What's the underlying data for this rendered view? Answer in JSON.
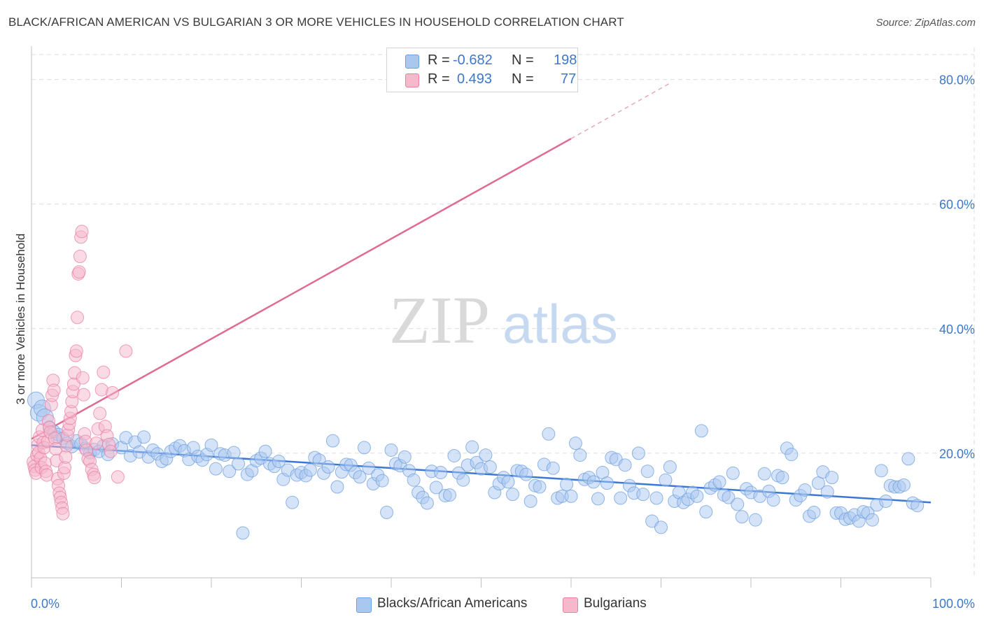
{
  "title": "BLACK/AFRICAN AMERICAN VS BULGARIAN 3 OR MORE VEHICLES IN HOUSEHOLD CORRELATION CHART",
  "source": "Source: ZipAtlas.com",
  "watermark": {
    "zip": "ZIP",
    "atlas": "atlas"
  },
  "legend_top": {
    "rows": [
      {
        "r_label": "R =",
        "r_value": "-0.682",
        "n_label": "N =",
        "n_value": "198",
        "color": "#a9c8f0",
        "border": "#6d9fe0"
      },
      {
        "r_label": "R =",
        "r_value": "0.493",
        "n_label": "N =",
        "n_value": "77",
        "color": "#f6b8cb",
        "border": "#e97fa1"
      }
    ]
  },
  "legend_bottom": [
    {
      "label": "Blacks/African Americans",
      "color": "#a9c8f0",
      "border": "#6d9fe0"
    },
    {
      "label": "Bulgarians",
      "color": "#f6b8cb",
      "border": "#e97fa1"
    }
  ],
  "chart_data": {
    "type": "scatter",
    "title": "BLACK/AFRICAN AMERICAN VS BULGARIAN 3 OR MORE VEHICLES IN HOUSEHOLD CORRELATION CHART",
    "xlabel": "",
    "ylabel": "3 or more Vehicles in Household",
    "xlim": [
      0,
      100
    ],
    "ylim": [
      0,
      84
    ],
    "y_ticks": [
      20,
      40,
      60,
      80
    ],
    "y_tick_labels": [
      "20.0%",
      "40.0%",
      "60.0%",
      "80.0%"
    ],
    "x_tick_labels": [
      "0.0%",
      "100.0%"
    ],
    "grid": true,
    "series": [
      {
        "name": "Blacks/African Americans",
        "color": "#6d9fe0",
        "fill": "#a9c8f0",
        "trend": {
          "x0": 0,
          "y0": 21.3,
          "x1": 100,
          "y1": 12.1,
          "style": "solid"
        },
        "points": [
          [
            0.5,
            28.5
          ],
          [
            0.8,
            26.5
          ],
          [
            1.2,
            27.2
          ],
          [
            1.5,
            25.8
          ],
          [
            2.0,
            24.2
          ],
          [
            2.5,
            23.5
          ],
          [
            2.8,
            22.6
          ],
          [
            3.0,
            23.0
          ],
          [
            3.5,
            22.4
          ],
          [
            4.0,
            21.6
          ],
          [
            4.5,
            21.1
          ],
          [
            5.0,
            22.0
          ],
          [
            5.5,
            21.5
          ],
          [
            6.0,
            20.8
          ],
          [
            6.5,
            20.1
          ],
          [
            7.0,
            20.6
          ],
          [
            7.5,
            20.3
          ],
          [
            8.0,
            21.2
          ],
          [
            8.5,
            19.8
          ],
          [
            9.0,
            21.5
          ],
          [
            10.0,
            20.9
          ],
          [
            10.5,
            22.5
          ],
          [
            11.0,
            19.6
          ],
          [
            11.5,
            21.8
          ],
          [
            12.0,
            20.2
          ],
          [
            12.5,
            22.6
          ],
          [
            13.0,
            19.4
          ],
          [
            13.5,
            20.5
          ],
          [
            14.0,
            19.9
          ],
          [
            14.5,
            18.7
          ],
          [
            15.0,
            19.1
          ],
          [
            15.5,
            20.3
          ],
          [
            16.0,
            20.8
          ],
          [
            16.5,
            21.2
          ],
          [
            17.0,
            20.4
          ],
          [
            17.5,
            19.0
          ],
          [
            18.0,
            20.9
          ],
          [
            18.5,
            19.5
          ],
          [
            19.0,
            18.9
          ],
          [
            19.5,
            19.8
          ],
          [
            20.0,
            21.3
          ],
          [
            20.5,
            17.5
          ],
          [
            21.0,
            19.9
          ],
          [
            21.5,
            19.7
          ],
          [
            22.0,
            17.1
          ],
          [
            22.5,
            20.1
          ],
          [
            23.0,
            18.3
          ],
          [
            23.5,
            7.2
          ],
          [
            24.0,
            16.6
          ],
          [
            24.5,
            17.2
          ],
          [
            25.0,
            18.8
          ],
          [
            25.5,
            19.2
          ],
          [
            26.0,
            20.3
          ],
          [
            26.5,
            18.3
          ],
          [
            27.0,
            17.9
          ],
          [
            27.5,
            18.7
          ],
          [
            28.0,
            15.8
          ],
          [
            28.5,
            17.3
          ],
          [
            29.0,
            12.1
          ],
          [
            29.5,
            16.5
          ],
          [
            30.0,
            16.9
          ],
          [
            30.5,
            16.4
          ],
          [
            31.0,
            17.3
          ],
          [
            31.5,
            19.3
          ],
          [
            32.0,
            18.9
          ],
          [
            32.5,
            16.8
          ],
          [
            33.0,
            17.8
          ],
          [
            33.5,
            22.0
          ],
          [
            34.0,
            14.6
          ],
          [
            34.5,
            17.0
          ],
          [
            35.0,
            18.2
          ],
          [
            35.5,
            18.1
          ],
          [
            36.0,
            16.9
          ],
          [
            36.5,
            16.2
          ],
          [
            37.0,
            20.9
          ],
          [
            37.5,
            17.6
          ],
          [
            38.0,
            15.1
          ],
          [
            38.5,
            16.5
          ],
          [
            39.0,
            15.6
          ],
          [
            39.5,
            10.5
          ],
          [
            40.0,
            20.5
          ],
          [
            40.5,
            18.3
          ],
          [
            41.0,
            18.0
          ],
          [
            41.5,
            19.4
          ],
          [
            42.0,
            17.2
          ],
          [
            42.5,
            15.7
          ],
          [
            43.0,
            13.7
          ],
          [
            43.5,
            12.9
          ],
          [
            44.0,
            12.0
          ],
          [
            44.5,
            17.1
          ],
          [
            45.0,
            14.5
          ],
          [
            45.5,
            16.9
          ],
          [
            46.0,
            13.2
          ],
          [
            46.5,
            13.3
          ],
          [
            47.0,
            19.6
          ],
          [
            47.5,
            16.8
          ],
          [
            48.0,
            15.7
          ],
          [
            48.5,
            18.1
          ],
          [
            49.0,
            21.0
          ],
          [
            49.5,
            18.5
          ],
          [
            50.0,
            17.5
          ],
          [
            50.5,
            19.7
          ],
          [
            51.0,
            17.8
          ],
          [
            51.5,
            13.7
          ],
          [
            52.0,
            15.1
          ],
          [
            52.5,
            16.1
          ],
          [
            53.0,
            15.4
          ],
          [
            53.5,
            13.4
          ],
          [
            54.0,
            17.2
          ],
          [
            54.5,
            17.1
          ],
          [
            55.0,
            16.6
          ],
          [
            55.5,
            12.3
          ],
          [
            56.0,
            14.8
          ],
          [
            56.5,
            14.6
          ],
          [
            57.0,
            18.2
          ],
          [
            57.5,
            23.1
          ],
          [
            58.0,
            17.6
          ],
          [
            58.5,
            12.8
          ],
          [
            59.0,
            13.1
          ],
          [
            59.5,
            15.0
          ],
          [
            60.0,
            13.1
          ],
          [
            60.5,
            21.6
          ],
          [
            61.0,
            19.7
          ],
          [
            61.5,
            15.8
          ],
          [
            62.0,
            16.1
          ],
          [
            62.5,
            15.4
          ],
          [
            63.0,
            12.7
          ],
          [
            63.5,
            16.9
          ],
          [
            64.0,
            15.2
          ],
          [
            64.5,
            19.3
          ],
          [
            65.0,
            19.0
          ],
          [
            65.5,
            12.8
          ],
          [
            66.0,
            18.1
          ],
          [
            66.5,
            14.8
          ],
          [
            67.0,
            13.6
          ],
          [
            67.5,
            20.0
          ],
          [
            68.0,
            13.4
          ],
          [
            68.5,
            17.1
          ],
          [
            69.0,
            9.1
          ],
          [
            69.5,
            12.8
          ],
          [
            70.0,
            8.1
          ],
          [
            70.5,
            15.7
          ],
          [
            71.0,
            17.8
          ],
          [
            71.5,
            12.3
          ],
          [
            72.0,
            13.7
          ],
          [
            72.5,
            12.1
          ],
          [
            73.0,
            12.6
          ],
          [
            73.5,
            13.7
          ],
          [
            74.0,
            13.1
          ],
          [
            74.5,
            23.6
          ],
          [
            75.0,
            10.6
          ],
          [
            75.5,
            14.4
          ],
          [
            76.0,
            14.9
          ],
          [
            76.5,
            15.4
          ],
          [
            77.0,
            13.3
          ],
          [
            77.5,
            12.9
          ],
          [
            78.0,
            16.8
          ],
          [
            78.5,
            11.8
          ],
          [
            79.0,
            9.8
          ],
          [
            79.5,
            14.3
          ],
          [
            80.0,
            13.7
          ],
          [
            80.5,
            9.3
          ],
          [
            81.0,
            13.1
          ],
          [
            81.5,
            16.7
          ],
          [
            82.0,
            13.9
          ],
          [
            82.5,
            12.5
          ],
          [
            83.0,
            16.4
          ],
          [
            83.5,
            16.1
          ],
          [
            84.0,
            20.8
          ],
          [
            84.5,
            19.8
          ],
          [
            85.0,
            12.5
          ],
          [
            85.5,
            13.2
          ],
          [
            86.0,
            14.1
          ],
          [
            86.5,
            9.9
          ],
          [
            87.0,
            10.5
          ],
          [
            87.5,
            15.2
          ],
          [
            88.0,
            17.0
          ],
          [
            88.5,
            13.8
          ],
          [
            89.0,
            16.1
          ],
          [
            89.5,
            10.4
          ],
          [
            90.0,
            10.4
          ],
          [
            90.5,
            9.4
          ],
          [
            91.0,
            9.6
          ],
          [
            91.5,
            10.1
          ],
          [
            92.0,
            9.1
          ],
          [
            92.5,
            10.6
          ],
          [
            93.0,
            10.4
          ],
          [
            93.5,
            9.3
          ],
          [
            94.0,
            11.7
          ],
          [
            94.5,
            17.2
          ],
          [
            95.0,
            12.3
          ],
          [
            95.5,
            14.8
          ],
          [
            96.0,
            14.6
          ],
          [
            96.5,
            14.6
          ],
          [
            97.0,
            14.9
          ],
          [
            97.5,
            19.1
          ],
          [
            98.0,
            12.0
          ],
          [
            98.5,
            11.6
          ]
        ]
      },
      {
        "name": "Bulgarians",
        "color": "#e97fa1",
        "fill": "#f6b8cb",
        "trend": {
          "x0": 0,
          "y0": 22.3,
          "x1": 60,
          "y1": 70.5,
          "x2": 71,
          "y2": 79.4,
          "style": "solid-then-dashed"
        },
        "points": [
          [
            0.2,
            18.6
          ],
          [
            0.3,
            17.9
          ],
          [
            0.4,
            17.3
          ],
          [
            0.5,
            16.8
          ],
          [
            0.6,
            19.7
          ],
          [
            0.7,
            21.3
          ],
          [
            0.8,
            20.1
          ],
          [
            0.9,
            22.6
          ],
          [
            1.0,
            19.2
          ],
          [
            1.1,
            17.7
          ],
          [
            1.2,
            23.7
          ],
          [
            1.3,
            21.7
          ],
          [
            1.4,
            20.9
          ],
          [
            1.5,
            18.4
          ],
          [
            1.6,
            17.1
          ],
          [
            1.7,
            16.5
          ],
          [
            1.8,
            21.9
          ],
          [
            1.9,
            25.2
          ],
          [
            2.0,
            24.1
          ],
          [
            2.1,
            23.4
          ],
          [
            2.2,
            27.8
          ],
          [
            2.3,
            29.3
          ],
          [
            2.4,
            31.7
          ],
          [
            2.5,
            30.1
          ],
          [
            2.6,
            22.4
          ],
          [
            2.7,
            20.7
          ],
          [
            2.8,
            18.8
          ],
          [
            2.9,
            15.9
          ],
          [
            3.0,
            14.8
          ],
          [
            3.1,
            13.6
          ],
          [
            3.2,
            12.9
          ],
          [
            3.3,
            12.1
          ],
          [
            3.4,
            11.2
          ],
          [
            3.5,
            10.3
          ],
          [
            3.6,
            16.8
          ],
          [
            3.7,
            17.7
          ],
          [
            3.8,
            19.4
          ],
          [
            3.9,
            21.2
          ],
          [
            4.0,
            22.9
          ],
          [
            4.1,
            23.8
          ],
          [
            4.2,
            24.7
          ],
          [
            4.3,
            25.6
          ],
          [
            4.4,
            26.7
          ],
          [
            4.5,
            28.3
          ],
          [
            4.6,
            29.9
          ],
          [
            4.7,
            31.1
          ],
          [
            4.8,
            32.9
          ],
          [
            4.9,
            35.7
          ],
          [
            5.0,
            36.4
          ],
          [
            5.1,
            41.8
          ],
          [
            5.2,
            48.8
          ],
          [
            5.3,
            49.1
          ],
          [
            5.4,
            51.6
          ],
          [
            5.5,
            54.7
          ],
          [
            5.6,
            55.6
          ],
          [
            5.7,
            32.1
          ],
          [
            5.8,
            29.4
          ],
          [
            5.9,
            23.1
          ],
          [
            6.0,
            21.9
          ],
          [
            6.1,
            20.5
          ],
          [
            6.3,
            19.1
          ],
          [
            6.5,
            18.7
          ],
          [
            6.7,
            17.4
          ],
          [
            6.9,
            16.6
          ],
          [
            7.0,
            16.1
          ],
          [
            7.2,
            21.6
          ],
          [
            7.4,
            23.9
          ],
          [
            7.6,
            26.4
          ],
          [
            7.8,
            30.2
          ],
          [
            8.0,
            33.0
          ],
          [
            8.2,
            24.3
          ],
          [
            8.4,
            22.8
          ],
          [
            8.6,
            21.4
          ],
          [
            8.8,
            20.3
          ],
          [
            9.0,
            29.7
          ],
          [
            9.6,
            16.2
          ],
          [
            10.5,
            36.4
          ]
        ]
      }
    ]
  }
}
